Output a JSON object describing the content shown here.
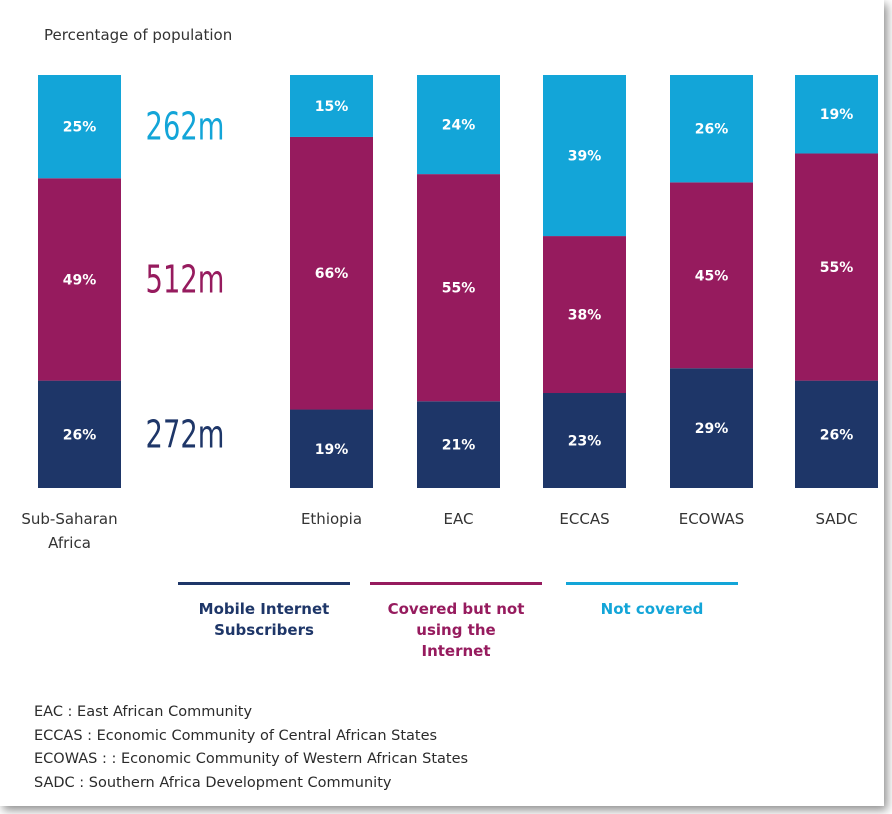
{
  "chart_data": {
    "type": "bar",
    "stacked": true,
    "ylabel": "Percentage of population",
    "categories": [
      "Sub-Saharan\nAfrica",
      "Ethiopia",
      "EAC",
      "ECCAS",
      "ECOWAS",
      "SADC"
    ],
    "series": [
      {
        "name": "Mobile Internet Subscribers",
        "color": "#1e3668",
        "values": [
          26,
          19,
          21,
          23,
          29,
          26
        ]
      },
      {
        "name": "Covered but not using the Internet",
        "color": "#961b5e",
        "values": [
          49,
          66,
          55,
          38,
          45,
          55
        ]
      },
      {
        "name": "Not covered",
        "color": "#13a5d8",
        "values": [
          25,
          15,
          24,
          39,
          26,
          19
        ]
      }
    ],
    "value_suffix": "%",
    "totals_annotations": [
      {
        "series": "Not covered",
        "text": "262m"
      },
      {
        "series": "Covered but not using the Internet",
        "text": "512m"
      },
      {
        "series": "Mobile Internet Subscribers",
        "text": "272m"
      }
    ],
    "ylim": [
      0,
      100
    ],
    "grid": false,
    "legend_position": "bottom"
  },
  "legend": {
    "items": [
      {
        "label": "Mobile Internet\nSubscribers",
        "color": "#1e3668"
      },
      {
        "label": "Covered but not\nusing the\nInternet",
        "color": "#961b5e"
      },
      {
        "label": "Not covered",
        "color": "#13a5d8"
      }
    ]
  },
  "abbreviations": [
    "EAC : East African Community",
    "ECCAS : Economic Community of Central African States",
    "ECOWAS : : Economic Community of Western African States",
    "SADC : Southern Africa Development Community"
  ]
}
